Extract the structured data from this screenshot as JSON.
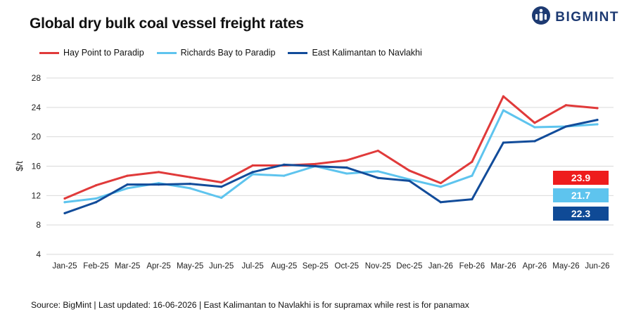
{
  "title": "Global dry bulk coal vessel freight rates",
  "brand": {
    "name": "BIGMINT",
    "icon": "bigmint-logo-icon",
    "color": "#1d3a72"
  },
  "footer": {
    "source": "Source: BigMint | Last updated: 16-06-2026 | East Kalimantan to Navlakhi is for supramax while rest is for panamax"
  },
  "chart_data": {
    "type": "line",
    "title": "Global dry bulk coal vessel freight rates",
    "xlabel": "",
    "ylabel": "$/t",
    "ylim": [
      4,
      28
    ],
    "yticks": [
      4,
      8,
      12,
      16,
      20,
      24,
      28
    ],
    "grid": true,
    "legend_position": "top-left",
    "categories": [
      "Jan-25",
      "Feb-25",
      "Mar-25",
      "Apr-25",
      "May-25",
      "Jun-25",
      "Jul-25",
      "Aug-25",
      "Sep-25",
      "Oct-25",
      "Nov-25",
      "Dec-25",
      "Jan-26",
      "Feb-26",
      "Mar-26",
      "Apr-26",
      "May-26",
      "Jun-26"
    ],
    "series": [
      {
        "name": "Hay Point to Paradip",
        "color": "#e03a3a",
        "values": [
          11.6,
          13.4,
          14.7,
          15.2,
          14.5,
          13.8,
          16.1,
          16.1,
          16.3,
          16.8,
          18.1,
          15.4,
          13.7,
          16.6,
          25.5,
          21.9,
          24.3,
          23.9
        ],
        "end_label": "23.9",
        "label_color": "#ee1c1c"
      },
      {
        "name": "Richards Bay to Paradip",
        "color": "#5ec4ee",
        "values": [
          11.1,
          11.6,
          13.0,
          13.7,
          13.0,
          11.7,
          14.9,
          14.7,
          16.0,
          15.0,
          15.3,
          14.2,
          13.2,
          14.7,
          23.6,
          21.3,
          21.4,
          21.7
        ],
        "end_label": "21.7",
        "label_color": "#5ec4ee"
      },
      {
        "name": "East Kalimantan to Navlakhi",
        "color": "#124c9a",
        "values": [
          9.6,
          11.1,
          13.5,
          13.5,
          13.6,
          13.2,
          15.2,
          16.2,
          16.0,
          15.8,
          14.4,
          14.0,
          11.1,
          11.5,
          19.2,
          19.4,
          21.4,
          22.3
        ],
        "end_label": "22.3",
        "label_color": "#0f4a96"
      }
    ]
  }
}
